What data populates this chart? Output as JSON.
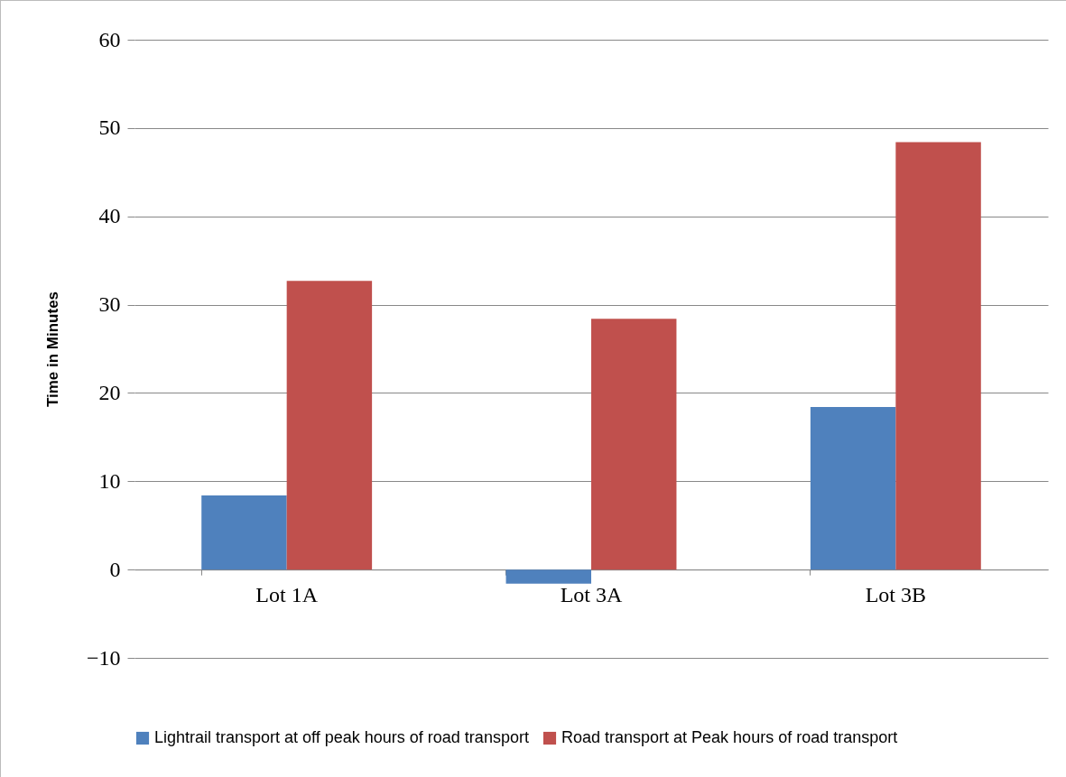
{
  "chart_data": {
    "type": "bar",
    "ylabel": "Time in Minutes",
    "categories": [
      "Lot 1A",
      "Lot 3A",
      "Lot 3B"
    ],
    "series": [
      {
        "name": "Lightrail transport at off peak hours of road transport",
        "color": "#4f81bd",
        "values": [
          8.4,
          -1.6,
          18.4
        ]
      },
      {
        "name": "Road transport at Peak hours of road transport",
        "color": "#c0504d",
        "values": [
          32.7,
          28.4,
          48.4
        ]
      }
    ],
    "ylim": [
      -10,
      60
    ],
    "yticks": [
      -10,
      0,
      10,
      20,
      30,
      40,
      50,
      60
    ],
    "grid": "y",
    "legend": "bottom"
  }
}
